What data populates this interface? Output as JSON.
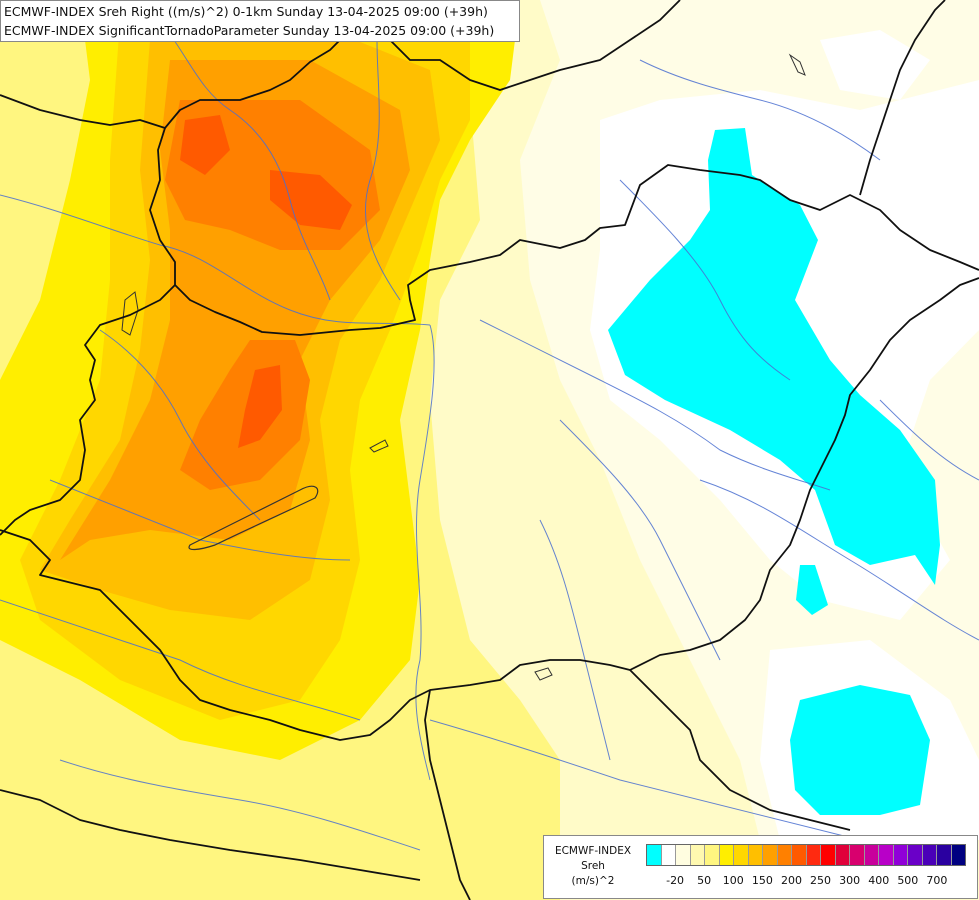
{
  "titles": {
    "line1": "ECMWF-INDEX Sreh Right ((m/s)^2) 0-1km Sunday 13-04-2025 09:00 (+39h)",
    "line2": "ECMWF-INDEX SignificantTornadoParameter Sunday 13-04-2025 09:00 (+39h)"
  },
  "legend": {
    "line1": "ECMWF-INDEX",
    "line2": "Sreh",
    "line3": "(m/s)^2",
    "colors": [
      "#00ffff",
      "#ffffff",
      "#fffde0",
      "#fff9b0",
      "#fff680",
      "#ffee00",
      "#ffd700",
      "#ffbf00",
      "#ffa000",
      "#ff8000",
      "#ff5a00",
      "#ff2a10",
      "#ff0000",
      "#e0003a",
      "#d8006e",
      "#c8009c",
      "#b800c8",
      "#9000d8",
      "#6a00c8",
      "#4a00b8",
      "#2a00a0",
      "#000080"
    ],
    "ticks": [
      {
        "label": "-20",
        "index": 1
      },
      {
        "label": "50",
        "index": 3
      },
      {
        "label": "100",
        "index": 5
      },
      {
        "label": "150",
        "index": 7
      },
      {
        "label": "200",
        "index": 9
      },
      {
        "label": "250",
        "index": 11
      },
      {
        "label": "300",
        "index": 13
      },
      {
        "label": "400",
        "index": 15
      },
      {
        "label": "500",
        "index": 17
      },
      {
        "label": "700",
        "index": 19
      }
    ]
  }
}
